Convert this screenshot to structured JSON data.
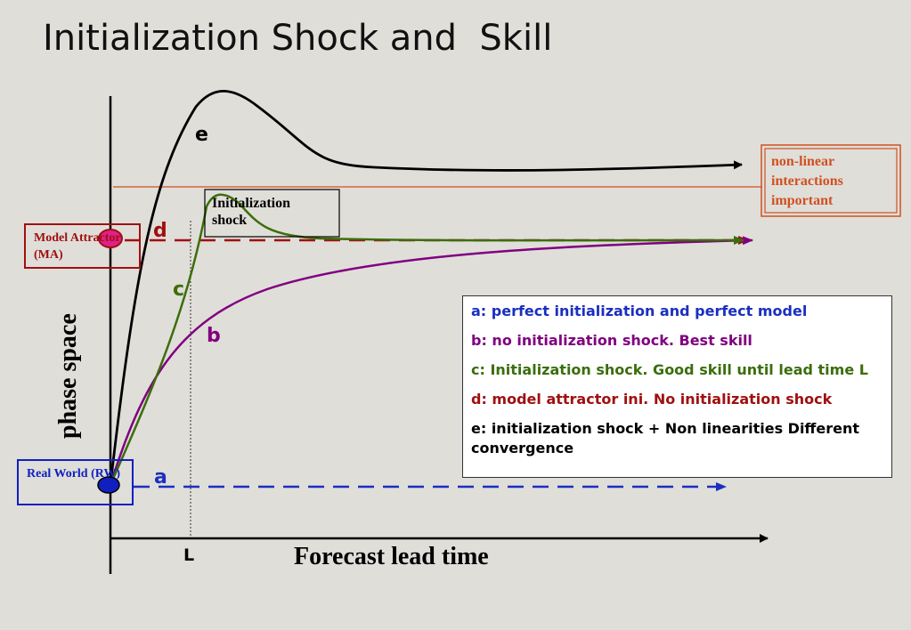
{
  "title": "Initialization Shock and  Skill",
  "axes": {
    "y_label": "phase space",
    "x_label": "Forecast lead time",
    "lead_mark": "L"
  },
  "boxes": {
    "model_attractor": "Model Attractor (MA)",
    "real_world": "Real World (RW)",
    "init_shock": "Initialization shock",
    "nonlinear": "non-linear interactions important"
  },
  "curve_labels": {
    "a": "a",
    "b": "b",
    "c": "c",
    "d": "d",
    "e": "e"
  },
  "legend": {
    "a": "a: perfect initialization and perfect model",
    "b": "b: no initialization shock. Best skill",
    "c": "c: Initialization shock. Good skill until lead time L",
    "d": "d: model attractor ini. No initialization shock",
    "e": "e: initialization shock + Non linearities Different convergence"
  },
  "colors": {
    "a": "#1a2fc0",
    "b": "#800080",
    "c": "#3b6e0c",
    "d": "#a01010",
    "e": "#000000",
    "nonlinear": "#d05020",
    "rw_box": "#1020c0",
    "ma_box": "#a01010"
  }
}
